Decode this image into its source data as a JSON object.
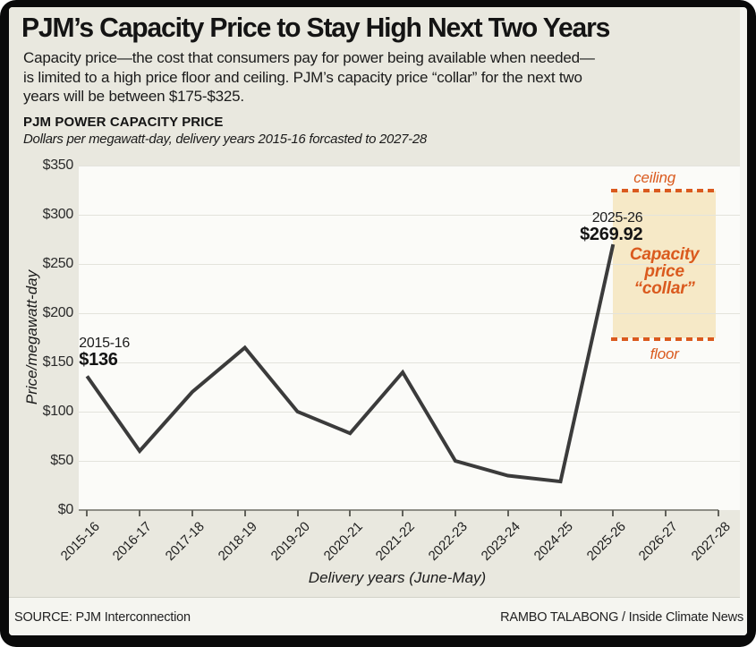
{
  "header": {
    "title": "PJM’s Capacity Price to Stay High Next Two Years",
    "intro_lines": [
      "Capacity price—the cost that consumers pay for power being available when needed—",
      "is limited to a high price floor and ceiling. PJM’s capacity price “collar” for the next two",
      "years will be between $175-$325."
    ],
    "chart_heading": "PJM POWER CAPACITY PRICE",
    "chart_subheading": "Dollars per megawatt-day, delivery years 2015-16 forcasted to 2027-28"
  },
  "chart_data": {
    "type": "line",
    "title": "PJM POWER CAPACITY PRICE",
    "categories": [
      "2015-16",
      "2016-17",
      "2017-18",
      "2018-19",
      "2019-20",
      "2020-21",
      "2021-22",
      "2022-23",
      "2023-24",
      "2024-25",
      "2025-26",
      "2026-27",
      "2027-28"
    ],
    "values": [
      136,
      60,
      120,
      165,
      100,
      78,
      140,
      50,
      35,
      29,
      269.92
    ],
    "xlabel": "Delivery years (June-May)",
    "ylabel": "Price/megawatt-day",
    "ylim": [
      0,
      350
    ],
    "ytick_step": 50,
    "ytick_prefix": "$",
    "grid": "horizontal",
    "annotations": {
      "first_point": {
        "category": "2015-16",
        "year_label": "2015-16",
        "price_label": "$136"
      },
      "peak_point": {
        "category": "2025-26",
        "year_label": "2025-26",
        "price_label": "$269.92"
      },
      "collar": {
        "start_category": "2025-26",
        "ceiling_value": 325,
        "floor_value": 175,
        "ceiling_label": "ceiling",
        "floor_label": "floor",
        "caption_lines": [
          "Capacity",
          "price",
          "“collar”"
        ]
      }
    },
    "colors": {
      "line": "#3b3b3b",
      "accent_orange": "#da5a1e",
      "collar_fill": "#f6e9c7",
      "plot_bg": "#fbfbf8",
      "panel_bg": "#e9e8df",
      "grid": "#e3e3dc"
    }
  },
  "footer": {
    "source": "SOURCE: PJM Interconnection",
    "credit": "RAMBO TALABONG / Inside Climate News"
  }
}
